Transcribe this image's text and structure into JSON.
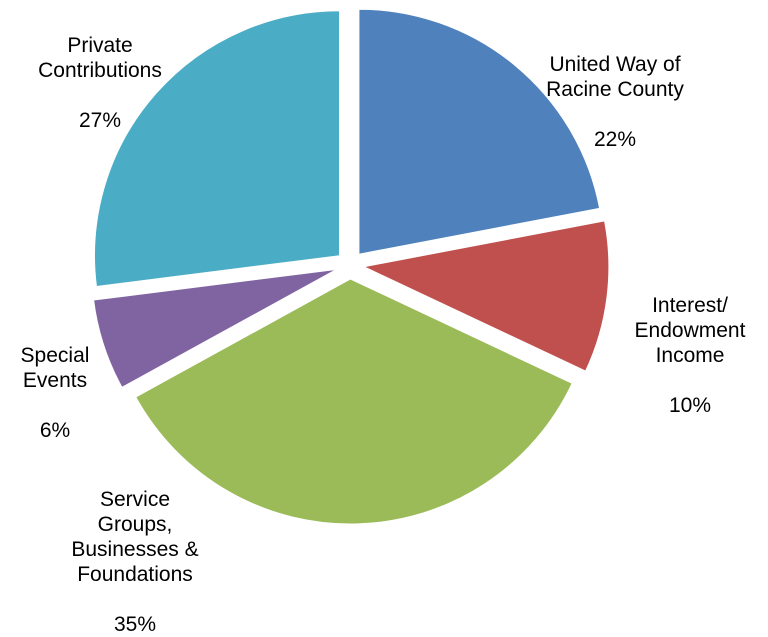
{
  "chart_data": {
    "type": "pie",
    "exploded": true,
    "slices": [
      {
        "label": "United Way of\nRacine County",
        "pct_label": "22%",
        "value": 22,
        "color": "#4f81bd"
      },
      {
        "label": "Interest/\nEndowment\nIncome",
        "pct_label": "10%",
        "value": 10,
        "color": "#c0504d"
      },
      {
        "label": "Service\nGroups,\nBusinesses &\nFoundations",
        "pct_label": "35%",
        "value": 35,
        "color": "#9bbb59"
      },
      {
        "label": "Special\nEvents",
        "pct_label": "6%",
        "value": 6,
        "color": "#8064a2"
      },
      {
        "label": "Private\nContributions",
        "pct_label": "27%",
        "value": 27,
        "color": "#4bacc6"
      }
    ]
  }
}
